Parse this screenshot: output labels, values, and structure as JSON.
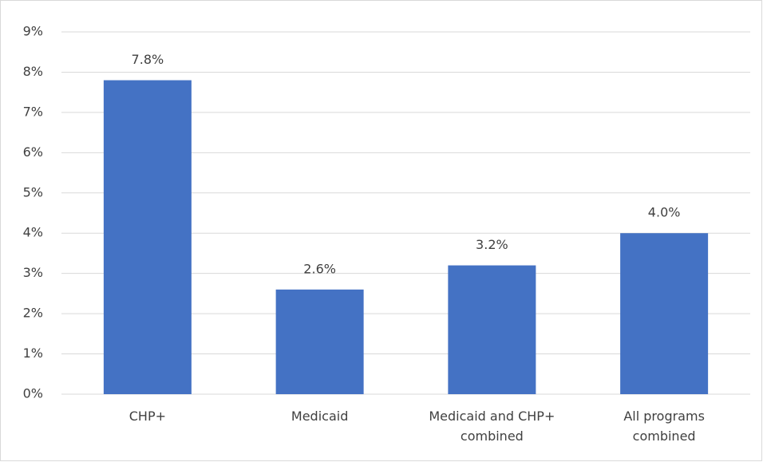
{
  "chart_data": {
    "type": "bar",
    "categories": [
      "CHP+",
      "Medicaid",
      "Medicaid and CHP+ combined",
      "All programs combined"
    ],
    "values": [
      7.8,
      2.6,
      3.2,
      4.0
    ],
    "value_labels": [
      "7.8%",
      "2.6%",
      "3.2%",
      "4.0%"
    ],
    "color": "#4472c4",
    "ylim": [
      0,
      9
    ],
    "yticks": [
      {
        "value": 0,
        "label": "0%"
      },
      {
        "value": 1,
        "label": "1%"
      },
      {
        "value": 2,
        "label": "2%"
      },
      {
        "value": 3,
        "label": "3%"
      },
      {
        "value": 4,
        "label": "4%"
      },
      {
        "value": 5,
        "label": "5%"
      },
      {
        "value": 6,
        "label": "6%"
      },
      {
        "value": 7,
        "label": "7%"
      },
      {
        "value": 8,
        "label": "8%"
      },
      {
        "value": 9,
        "label": "9%"
      }
    ],
    "grid": true
  }
}
